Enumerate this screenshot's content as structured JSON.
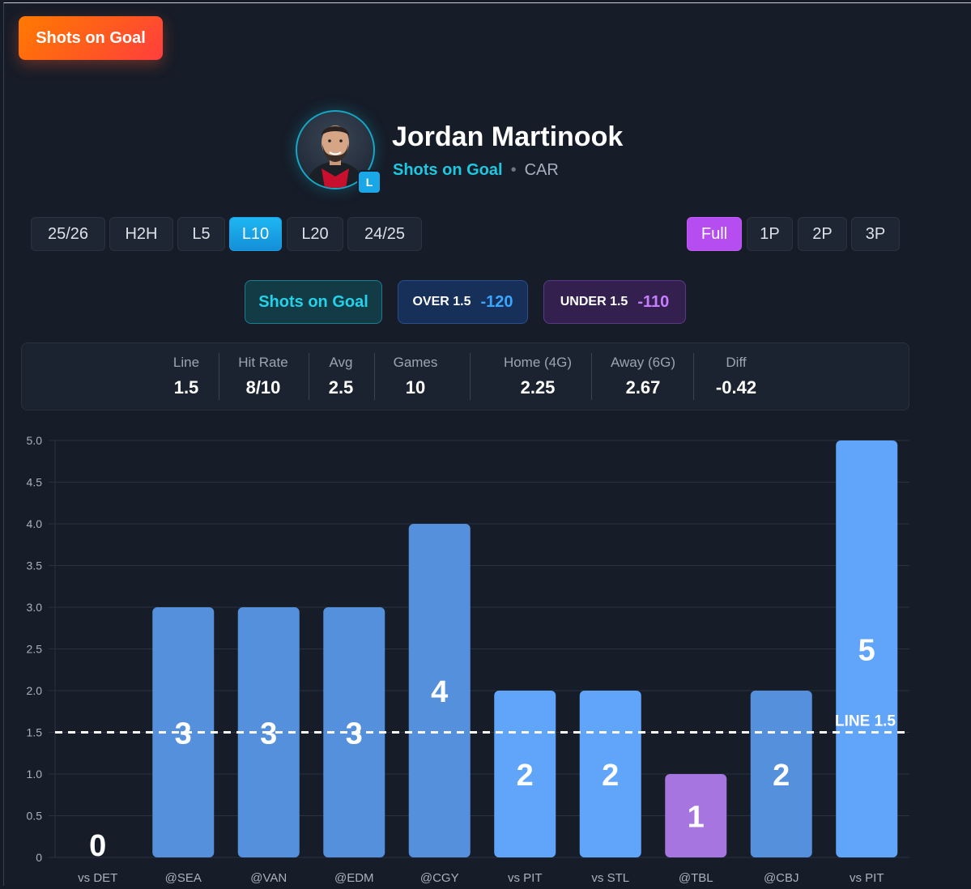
{
  "header": {
    "market_tag": "Shots on Goal"
  },
  "player": {
    "name": "Jordan Martinook",
    "market": "Shots on Goal",
    "separator": "•",
    "team": "CAR",
    "hand": "L"
  },
  "range_tabs": [
    {
      "label": "25/26",
      "active": false
    },
    {
      "label": "H2H",
      "active": false
    },
    {
      "label": "L5",
      "active": false
    },
    {
      "label": "L10",
      "active": true
    },
    {
      "label": "L20",
      "active": false
    },
    {
      "label": "24/25",
      "active": false
    }
  ],
  "period_tabs": [
    {
      "label": "Full",
      "active": true
    },
    {
      "label": "1P",
      "active": false
    },
    {
      "label": "2P",
      "active": false
    },
    {
      "label": "3P",
      "active": false
    }
  ],
  "market_pill": {
    "label": "Shots on Goal"
  },
  "over": {
    "label": "OVER 1.5",
    "odds": "-120"
  },
  "under": {
    "label": "UNDER 1.5",
    "odds": "-110"
  },
  "stats": [
    {
      "key": "Line",
      "value": "1.5"
    },
    {
      "key": "Hit Rate",
      "value": "8/10"
    },
    {
      "key": "Avg",
      "value": "2.5"
    },
    {
      "key": "Games",
      "value": "10"
    },
    {
      "key": "Home (4G)",
      "value": "2.25"
    },
    {
      "key": "Away (6G)",
      "value": "2.67"
    },
    {
      "key": "Diff",
      "value": "-0.42"
    }
  ],
  "colors": {
    "home_bar": "#60a5fa",
    "away_bar": "#5590dd",
    "under_bar": "#a675e0",
    "accent_cyan": "#1ec8e0",
    "accent_orange": "#ff6a10"
  },
  "chart_data": {
    "type": "bar",
    "categories": [
      "vs DET",
      "@SEA",
      "@VAN",
      "@EDM",
      "@CGY",
      "vs PIT",
      "vs STL",
      "@TBL",
      "@CBJ",
      "vs PIT"
    ],
    "values": [
      0,
      3,
      3,
      3,
      4,
      2,
      2,
      1,
      2,
      5
    ],
    "location": [
      "home",
      "away",
      "away",
      "away",
      "away",
      "home",
      "home",
      "away",
      "away",
      "home"
    ],
    "ylim": [
      0,
      5
    ],
    "yticks": [
      "0",
      "0.5",
      "1.0",
      "1.5",
      "2.0",
      "2.5",
      "3.0",
      "3.5",
      "4.0",
      "4.5",
      "5.0"
    ],
    "line": 1.5,
    "line_label": "LINE 1.5",
    "grid": true
  }
}
